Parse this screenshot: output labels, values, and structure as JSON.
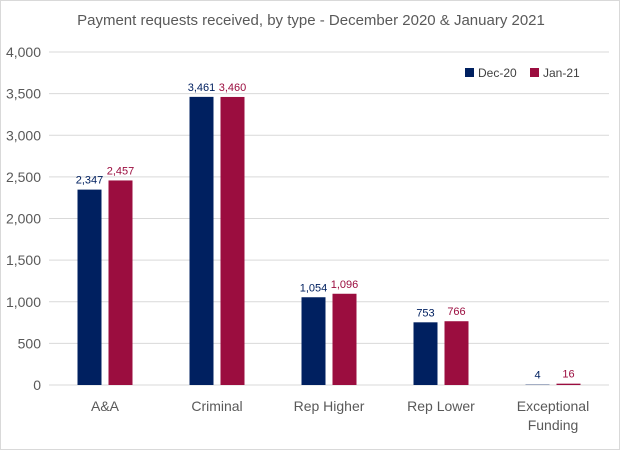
{
  "chart_data": {
    "type": "bar",
    "title": "Payment requests received, by type - December 2020 & January 2021",
    "categories": [
      "A&A",
      "Criminal",
      "Rep Higher",
      "Rep Lower",
      [
        "Exceptional",
        "Funding"
      ]
    ],
    "series": [
      {
        "name": "Dec-20",
        "color": "#002060",
        "values": [
          2347,
          3461,
          1054,
          753,
          4
        ]
      },
      {
        "name": "Jan-21",
        "color": "#9B0D3F",
        "values": [
          2457,
          3460,
          1096,
          766,
          16
        ]
      }
    ],
    "data_labels": [
      [
        "2,347",
        "3,461",
        "1,054",
        "753",
        "4"
      ],
      [
        "2,457",
        "3,460",
        "1,096",
        "766",
        "16"
      ]
    ],
    "yticks": [
      "0",
      "500",
      "1,000",
      "1,500",
      "2,000",
      "2,500",
      "3,000",
      "3,500",
      "4,000"
    ],
    "ylim": [
      0,
      4000
    ],
    "grid": true,
    "legend_position": "top-right",
    "xlabel": "",
    "ylabel": ""
  }
}
